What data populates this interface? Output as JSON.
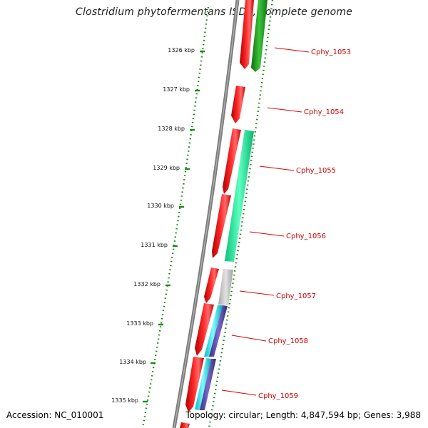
{
  "title": "Clostridium phytofermentans ISDg, complete genome",
  "footer": {
    "accession": "Accession: NC_010001",
    "summary": "Topology: circular; Length: 4,847,594 bp; Genes: 3,988"
  },
  "scale_labels": [
    "1326 kbp",
    "1327 kbp",
    "1328 kbp",
    "1329 kbp",
    "1330 kbp",
    "1331 kbp",
    "1332 kbp",
    "1333 kbp",
    "1334 kbp",
    "1335 kbp"
  ],
  "gene_labels": [
    "Cphy_1053",
    "Cphy_1054",
    "Cphy_1055",
    "Cphy_1056",
    "Cphy_1057",
    "Cphy_1058",
    "Cphy_1059"
  ],
  "colors": {
    "forward_cds": "#ff0000",
    "backbone": "#808080",
    "scale_dots": "#1a8a1a",
    "label_text": "#cc0000",
    "cog_green_dark": "#1f9a1f",
    "cog_mint": "#18f5a0",
    "cog_grey": "#c4c4c4",
    "cog_cyan": "#10f0f0",
    "cog_purple": "#5a4aa8"
  }
}
